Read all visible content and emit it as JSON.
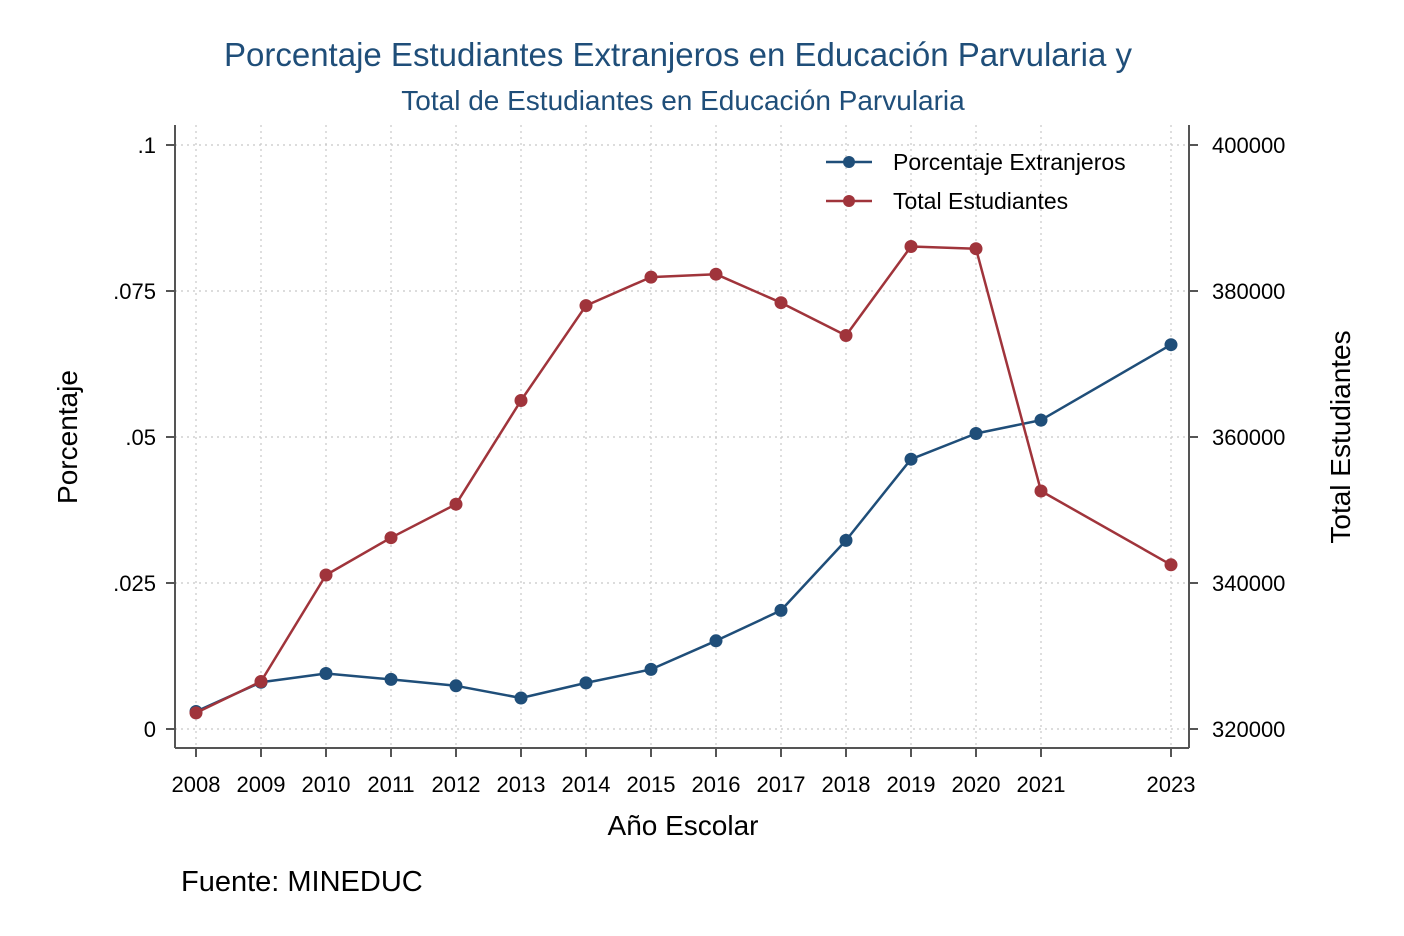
{
  "chart_data": {
    "type": "line",
    "title": "Porcentaje Estudiantes Extranjeros en Educación Parvularia y",
    "subtitle": "Total de Estudiantes en Educación Parvularia",
    "xlabel": "Año Escolar",
    "ylabel_left": "Porcentaje",
    "ylabel_right": "Total Estudiantes",
    "note": "Fuente: MINEDUC",
    "x": [
      2008,
      2009,
      2010,
      2011,
      2012,
      2013,
      2014,
      2015,
      2016,
      2017,
      2018,
      2019,
      2020,
      2021,
      2023
    ],
    "x_tick_labels": [
      "2008",
      "2009",
      "2010",
      "2011",
      "2012",
      "2013",
      "2014",
      "2015",
      "2016",
      "2017",
      "2018",
      "2019",
      "2020",
      "2021",
      "2023"
    ],
    "ylim_left": [
      0,
      0.1
    ],
    "yticks_left": [
      0,
      0.025,
      0.05,
      0.075,
      0.1
    ],
    "ytick_labels_left": [
      "0",
      ".025",
      ".05",
      ".075",
      ".1"
    ],
    "ylim_right": [
      320000,
      400000
    ],
    "yticks_right": [
      320000,
      340000,
      360000,
      380000,
      400000
    ],
    "ytick_labels_right": [
      "320000",
      "340000",
      "360000",
      "380000",
      "400000"
    ],
    "grid": true,
    "legend_position": "top-right",
    "series": [
      {
        "name": "Porcentaje Extranjeros",
        "axis": "left",
        "color": "#1f4e79",
        "values": [
          0.003,
          0.008,
          0.0095,
          0.0085,
          0.0074,
          0.0053,
          0.0079,
          0.0102,
          0.0151,
          0.0203,
          0.0323,
          0.0462,
          0.0506,
          0.0529,
          0.0658
        ]
      },
      {
        "name": "Total Estudiantes",
        "axis": "right",
        "color": "#a0343b",
        "values": [
          322200,
          326500,
          341100,
          346200,
          350800,
          365000,
          378000,
          381900,
          382300,
          378400,
          373900,
          386100,
          385800,
          352600,
          342500
        ]
      }
    ]
  }
}
